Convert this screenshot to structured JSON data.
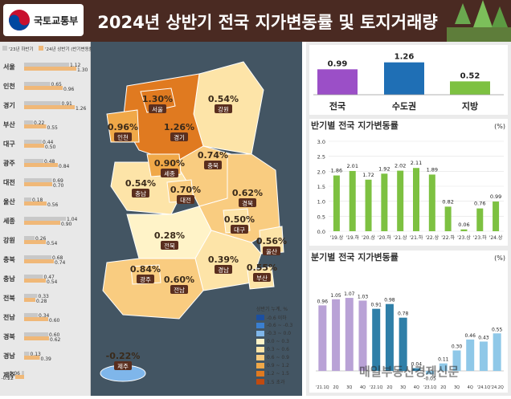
{
  "header": {
    "logo_text": "국토교통부",
    "title": "2024년 상반기 전국 지가변동률 및 토지거래량"
  },
  "colors": {
    "header_bg": "#4a2a22",
    "map_bg": "#435563",
    "bar_prev": "#c8c8c8",
    "bar_curr": "#f0b878",
    "purple": "#9b4fc7",
    "blue": "#1f6fb5",
    "green": "#7dc141",
    "lavender": "#b9a2d6",
    "teal": "#2f7fa8",
    "lightblue": "#8fc8e8"
  },
  "chart_data": [
    {
      "type": "bar",
      "legend": [
        "'23년 하반기",
        "'24년 상반기 (반기변동률, %)"
      ],
      "categories": [
        "서울",
        "인천",
        "경기",
        "부산",
        "대구",
        "광주",
        "대전",
        "울산",
        "세종",
        "강원",
        "충북",
        "충남",
        "전북",
        "전남",
        "경북",
        "경남",
        "제주"
      ],
      "series": [
        {
          "name": "'23년 하반기",
          "values": [
            1.12,
            0.65,
            0.91,
            0.22,
            0.44,
            0.48,
            0.69,
            0.18,
            1.04,
            0.26,
            0.68,
            0.47,
            0.33,
            0.34,
            0.6,
            0.13,
            -0.06
          ]
        },
        {
          "name": "'24년 상반기",
          "values": [
            1.3,
            0.96,
            1.26,
            0.55,
            0.5,
            0.84,
            0.7,
            0.56,
            0.9,
            0.54,
            0.74,
            0.54,
            0.28,
            0.6,
            0.62,
            0.39,
            -0.22
          ]
        }
      ]
    },
    {
      "type": "bar",
      "categories": [
        "전국",
        "수도권",
        "지방"
      ],
      "values": [
        0.99,
        1.26,
        0.52
      ]
    },
    {
      "type": "bar",
      "title": "반기별 전국 지가변동률",
      "unit": "(%)",
      "categories": [
        "'19.상",
        "'19.하",
        "'20.상",
        "'20.하",
        "'21.상",
        "'21.하",
        "'22.상",
        "'22.하",
        "'23.상",
        "'23.하",
        "'24.상"
      ],
      "values": [
        1.86,
        2.01,
        1.72,
        1.92,
        2.02,
        2.11,
        1.89,
        0.82,
        0.06,
        0.76,
        0.99
      ],
      "yticks": [
        "0.0",
        "0.5",
        "1.0",
        "1.5",
        "2.0",
        "2.5",
        "3.0"
      ],
      "ylim": [
        0,
        3.0
      ]
    },
    {
      "type": "bar",
      "title": "분기별 전국 지가변동률",
      "unit": "(%)",
      "categories": [
        "'21.1Q",
        "2Q",
        "3Q",
        "4Q",
        "'22.1Q",
        "2Q",
        "3Q",
        "4Q",
        "'23.1Q",
        "2Q",
        "3Q",
        "4Q",
        "'24.1Q",
        "'24.2Q"
      ],
      "values": [
        0.96,
        1.05,
        1.07,
        1.03,
        0.91,
        0.98,
        0.78,
        0.04,
        -0.05,
        0.11,
        0.3,
        0.46,
        0.43,
        0.55
      ]
    }
  ],
  "map": {
    "regions": [
      {
        "name": "서울",
        "value": "1.30%"
      },
      {
        "name": "인천",
        "value": "0.96%"
      },
      {
        "name": "경기",
        "value": "1.26%"
      },
      {
        "name": "강원",
        "value": "0.54%"
      },
      {
        "name": "세종",
        "value": "0.90%"
      },
      {
        "name": "충북",
        "value": "0.74%"
      },
      {
        "name": "충남",
        "value": "0.54%"
      },
      {
        "name": "대전",
        "value": "0.70%"
      },
      {
        "name": "경북",
        "value": "0.62%"
      },
      {
        "name": "대구",
        "value": "0.50%"
      },
      {
        "name": "울산",
        "value": "0.56%"
      },
      {
        "name": "전북",
        "value": "0.28%"
      },
      {
        "name": "경남",
        "value": "0.39%"
      },
      {
        "name": "부산",
        "value": "0.55%"
      },
      {
        "name": "광주",
        "value": "0.84%"
      },
      {
        "name": "전남",
        "value": "0.60%"
      },
      {
        "name": "제주",
        "value": "-0.22%"
      }
    ],
    "legend_title": "상반기 누계, %",
    "legend": [
      {
        "label": "-0.6 이하",
        "color": "#1c4fa0"
      },
      {
        "label": "-0.6 ~ -0.3",
        "color": "#3a7fd0"
      },
      {
        "label": "-0.3 ~ 0.0",
        "color": "#7fb6ea"
      },
      {
        "label": "0.0 ~ 0.3",
        "color": "#fff3c8"
      },
      {
        "label": "0.3 ~ 0.6",
        "color": "#fde4a8"
      },
      {
        "label": "0.6 ~ 0.9",
        "color": "#f9cc80"
      },
      {
        "label": "0.9 ~ 1.2",
        "color": "#f0a848"
      },
      {
        "label": "1.2 ~ 1.5",
        "color": "#e07a20"
      },
      {
        "label": "1.5 초과",
        "color": "#c04a10"
      }
    ]
  },
  "watermark": "매일부동산경제신문"
}
